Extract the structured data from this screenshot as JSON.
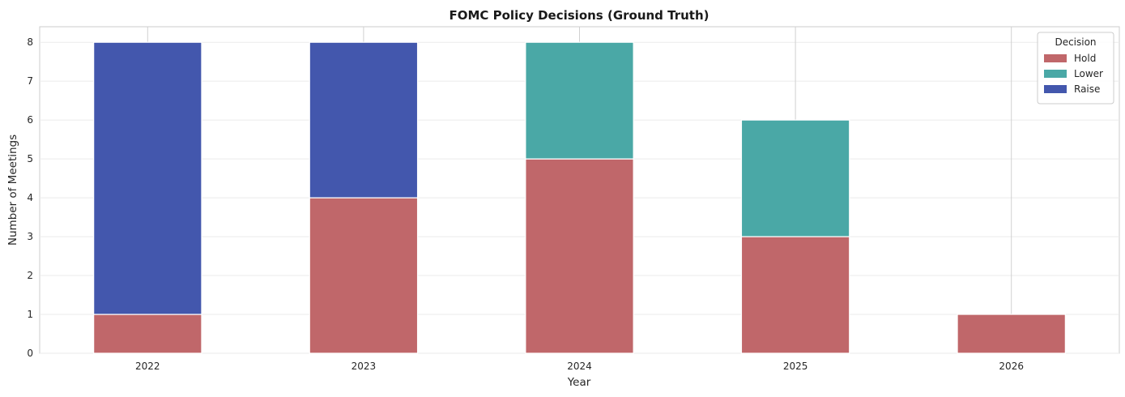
{
  "chart_data": {
    "type": "bar",
    "stacked": true,
    "title": "FOMC Policy Decisions (Ground Truth)",
    "xlabel": "Year",
    "ylabel": "Number of Meetings",
    "categories": [
      "2022",
      "2023",
      "2024",
      "2025",
      "2026"
    ],
    "series": [
      {
        "name": "Hold",
        "values": [
          1,
          4,
          5,
          3,
          1
        ],
        "color": "#c0676a"
      },
      {
        "name": "Lower",
        "values": [
          0,
          0,
          3,
          3,
          0
        ],
        "color": "#4aa8a6"
      },
      {
        "name": "Raise",
        "values": [
          7,
          4,
          0,
          0,
          0
        ],
        "color": "#4357ad"
      }
    ],
    "ylim": [
      0,
      8.4
    ],
    "yticks": [
      0,
      1,
      2,
      3,
      4,
      5,
      6,
      7,
      8
    ],
    "grid": true,
    "legend": {
      "title": "Decision",
      "placement": "top-right"
    }
  }
}
